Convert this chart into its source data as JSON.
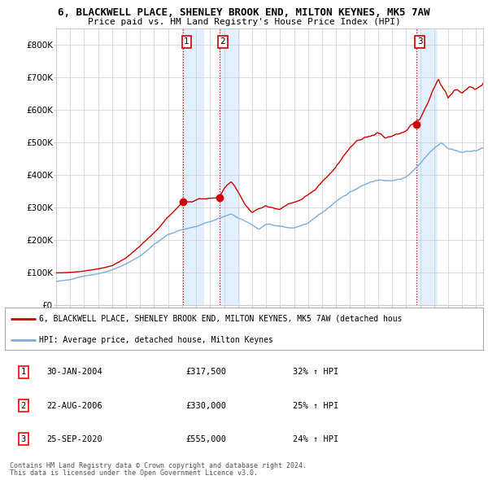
{
  "title1": "6, BLACKWELL PLACE, SHENLEY BROOK END, MILTON KEYNES, MK5 7AW",
  "title2": "Price paid vs. HM Land Registry's House Price Index (HPI)",
  "ylim": [
    0,
    850000
  ],
  "yticks": [
    0,
    100000,
    200000,
    300000,
    400000,
    500000,
    600000,
    700000,
    800000
  ],
  "ytick_labels": [
    "£0",
    "£100K",
    "£200K",
    "£300K",
    "£400K",
    "£500K",
    "£600K",
    "£700K",
    "£800K"
  ],
  "sale_dates": [
    2004.08,
    2006.65,
    2020.74
  ],
  "sale_prices": [
    317500,
    330000,
    555000
  ],
  "sale_labels": [
    "1",
    "2",
    "3"
  ],
  "legend_line1": "6, BLACKWELL PLACE, SHENLEY BROOK END, MILTON KEYNES, MK5 7AW (detached hous",
  "legend_line2": "HPI: Average price, detached house, Milton Keynes",
  "table_data": [
    [
      "1",
      "30-JAN-2004",
      "£317,500",
      "32% ↑ HPI"
    ],
    [
      "2",
      "22-AUG-2006",
      "£330,000",
      "25% ↑ HPI"
    ],
    [
      "3",
      "25-SEP-2020",
      "£555,000",
      "24% ↑ HPI"
    ]
  ],
  "footnote1": "Contains HM Land Registry data © Crown copyright and database right 2024.",
  "footnote2": "This data is licensed under the Open Government Licence v3.0.",
  "red_color": "#cc0000",
  "blue_color": "#7aade0",
  "shade_color": "#ddeeff",
  "background_color": "#ffffff",
  "grid_color": "#cccccc"
}
